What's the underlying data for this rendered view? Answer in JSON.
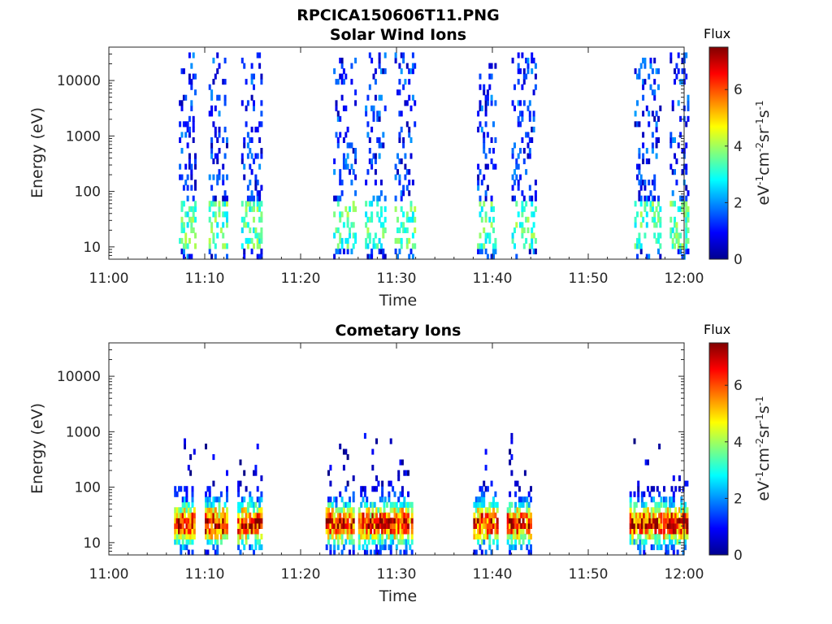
{
  "figure_title": "RPCICA150606T11.PNG",
  "chart_data": [
    {
      "type": "heatmap",
      "title": "Solar Wind Ions",
      "xlabel": "Time",
      "ylabel": "Energy (eV)",
      "xlim": [
        "11:00",
        "12:00"
      ],
      "xticks": [
        "11:00",
        "11:10",
        "11:20",
        "11:30",
        "11:40",
        "11:50",
        "12:00"
      ],
      "y_scale": "log",
      "ylim": [
        6,
        40000
      ],
      "yticks": [
        "10",
        "100",
        "1000",
        "10000"
      ],
      "colorbar": {
        "title": "Flux",
        "label": "eV-1cm-2sr-1s-1",
        "range": [
          0,
          7.5
        ],
        "ticks": [
          "0",
          "2",
          "4",
          "6"
        ],
        "colormap": "jet"
      },
      "activity_intervals_min": [
        [
          7.3,
          8.9
        ],
        [
          10.4,
          12.3
        ],
        [
          13.8,
          15.8
        ],
        [
          23.4,
          25.6
        ],
        [
          26.7,
          28.7
        ],
        [
          29.8,
          31.8
        ],
        [
          38.4,
          40.4
        ],
        [
          42.0,
          44.6
        ],
        [
          54.8,
          57.5
        ],
        [
          58.5,
          60.4
        ]
      ],
      "intensity_peak": 4.2,
      "intensity_peak_log10_energy": 1.4,
      "max_log10_energy": 4.5
    },
    {
      "type": "heatmap",
      "title": "Cometary Ions",
      "xlabel": "Time",
      "ylabel": "Energy (eV)",
      "xlim": [
        "11:00",
        "12:00"
      ],
      "xticks": [
        "11:00",
        "11:10",
        "11:20",
        "11:30",
        "11:40",
        "11:50",
        "12:00"
      ],
      "y_scale": "log",
      "ylim": [
        6,
        40000
      ],
      "yticks": [
        "10",
        "100",
        "1000",
        "10000"
      ],
      "colorbar": {
        "title": "Flux",
        "label": "eV-1cm-2sr-1s-1",
        "range": [
          0,
          7.5
        ],
        "ticks": [
          "0",
          "2",
          "4",
          "6"
        ],
        "colormap": "jet"
      },
      "activity_intervals_min": [
        [
          6.8,
          8.8
        ],
        [
          10.0,
          12.2
        ],
        [
          13.4,
          15.8
        ],
        [
          22.6,
          25.5
        ],
        [
          26.0,
          28.6
        ],
        [
          28.7,
          31.6
        ],
        [
          38.0,
          40.5
        ],
        [
          41.5,
          44.0
        ],
        [
          54.3,
          57.6
        ],
        [
          57.8,
          60.4
        ]
      ],
      "intensity_peak": 7.2,
      "intensity_peak_log10_energy": 1.35,
      "max_log10_energy": 3.0
    }
  ]
}
